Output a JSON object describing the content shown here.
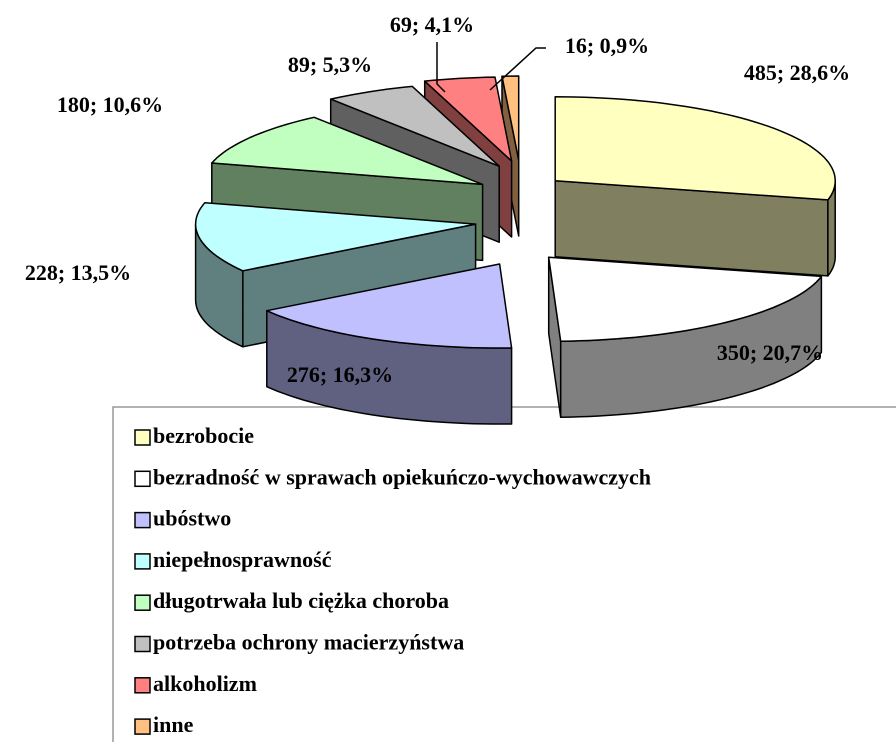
{
  "chart_data": {
    "type": "pie",
    "categories": [
      "bezrobocie",
      "bezradność w sprawach opiekuńczo-wychowawczych",
      "ubóstwo",
      "niepełnosprawność",
      "długotrwała lub ciężka choroba",
      "potrzeba ochrony macierzyństwa",
      "alkoholizm",
      "inne"
    ],
    "values": [
      485,
      350,
      276,
      228,
      180,
      89,
      69,
      16
    ],
    "value_labels": [
      "485; 28,6%",
      "350; 20,7%",
      "276; 16,3%",
      "228; 13,5%",
      "180; 10,6%",
      "89; 5,3%",
      "69; 4,1%",
      "16; 0,9%"
    ],
    "colors": [
      "#ffffc0",
      "#ffffff",
      "#c0c0ff",
      "#c0ffff",
      "#c0ffc0",
      "#c0c0c0",
      "#ff8080",
      "#ffc080"
    ]
  }
}
